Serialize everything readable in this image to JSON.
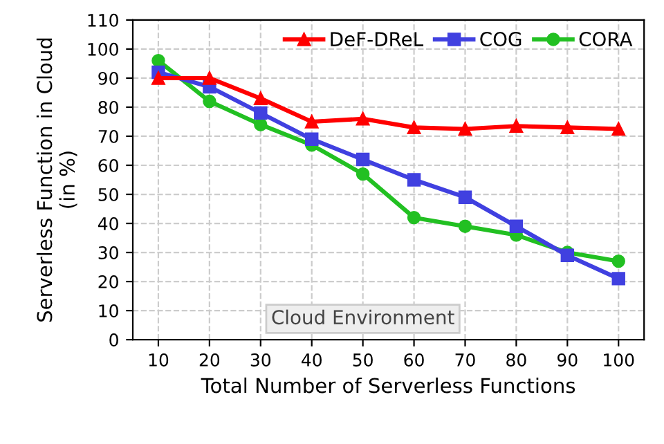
{
  "chart_data": {
    "type": "line",
    "xlabel": "Total Number of Serverless Functions",
    "ylabel": "Serverless Function in Cloud\n(in %)",
    "categories": [
      "10",
      "20",
      "30",
      "40",
      "50",
      "60",
      "70",
      "80",
      "90",
      "100"
    ],
    "series": [
      {
        "name": "DeF-DReL",
        "color": "#ff0000",
        "marker": "triangle",
        "values": [
          90,
          90,
          83,
          75,
          76,
          73,
          72.5,
          73.5,
          73,
          72.5
        ]
      },
      {
        "name": "COG",
        "color": "#4040e0",
        "marker": "square",
        "values": [
          92,
          87,
          78,
          69,
          62,
          55,
          49,
          39,
          29,
          21
        ]
      },
      {
        "name": "CORA",
        "color": "#22c022",
        "marker": "circle",
        "values": [
          96,
          82,
          74,
          67,
          57,
          42,
          39,
          36,
          30,
          27
        ]
      }
    ],
    "ylim": [
      0,
      110
    ],
    "yticks": [
      0,
      10,
      20,
      30,
      40,
      50,
      60,
      70,
      80,
      90,
      100,
      110
    ],
    "grid": true,
    "legend": "top right",
    "annotations": [
      "Cloud Environment"
    ]
  }
}
